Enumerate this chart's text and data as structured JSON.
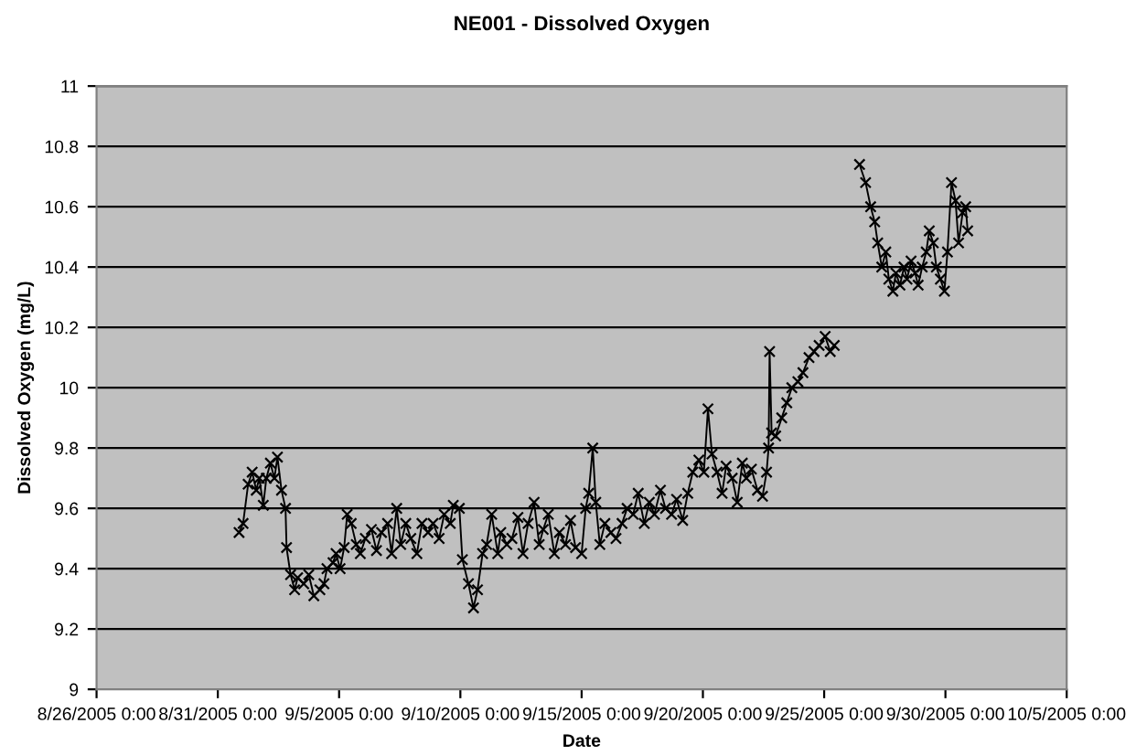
{
  "chart_data": {
    "type": "line",
    "title": "NE001 - Dissolved Oxygen",
    "xlabel": "Date",
    "ylabel": "Dissolved Oxygen (mg/L)",
    "xlim": [
      "2005-08-26",
      "2005-10-05"
    ],
    "xticks": [
      {
        "value": "2005-08-26",
        "label": "8/26/2005 0:00"
      },
      {
        "value": "2005-08-31",
        "label": "8/31/2005 0:00"
      },
      {
        "value": "2005-09-05",
        "label": "9/5/2005 0:00"
      },
      {
        "value": "2005-09-10",
        "label": "9/10/2005 0:00"
      },
      {
        "value": "2005-09-15",
        "label": "9/15/2005 0:00"
      },
      {
        "value": "2005-09-20",
        "label": "9/20/2005 0:00"
      },
      {
        "value": "2005-09-25",
        "label": "9/25/2005 0:00"
      },
      {
        "value": "2005-09-30",
        "label": "9/30/2005 0:00"
      },
      {
        "value": "2005-10-05",
        "label": "10/5/2005 0:00"
      }
    ],
    "ylim": [
      9,
      11
    ],
    "yticks": [
      9,
      9.2,
      9.4,
      9.6,
      9.8,
      10,
      10.2,
      10.4,
      10.6,
      10.8,
      11
    ],
    "grid": "y",
    "legend": false,
    "marker": "cross",
    "line_style": "solid",
    "series": [
      {
        "color": "#000000",
        "x": [
          "2005-08-31T21:00",
          "2005-09-01T01:00",
          "2005-09-01T06:00",
          "2005-09-01T10:00",
          "2005-09-01T14:00",
          "2005-09-01T17:00",
          "2005-09-01T21:00",
          "2005-09-02T00:00",
          "2005-09-02T04:00",
          "2005-09-02T08:00",
          "2005-09-02T11:00",
          "2005-09-02T15:00",
          "2005-09-02T19:00",
          "2005-09-02T20:00",
          "2005-09-03T00:00",
          "2005-09-03T04:00",
          "2005-09-03T07:00",
          "2005-09-03T13:00",
          "2005-09-03T18:00",
          "2005-09-03T23:00",
          "2005-09-04T05:00",
          "2005-09-04T09:00",
          "2005-09-04T12:00",
          "2005-09-04T18:00",
          "2005-09-04T21:00",
          "2005-09-05T01:00",
          "2005-09-05T05:00",
          "2005-09-05T08:00",
          "2005-09-05T12:00",
          "2005-09-05T17:00",
          "2005-09-05T21:00",
          "2005-09-06T02:00",
          "2005-09-06T08:00",
          "2005-09-06T13:00",
          "2005-09-06T18:00",
          "2005-09-07T00:00",
          "2005-09-07T04:00",
          "2005-09-07T09:00",
          "2005-09-07T13:00",
          "2005-09-07T18:00",
          "2005-09-07T23:00",
          "2005-09-08T05:00",
          "2005-09-08T10:00",
          "2005-09-08T16:00",
          "2005-09-08T21:00",
          "2005-09-09T03:00",
          "2005-09-09T08:00",
          "2005-09-09T14:00",
          "2005-09-09T17:00",
          "2005-09-09T23:00",
          "2005-09-10T02:00",
          "2005-09-10T08:00",
          "2005-09-10T13:00",
          "2005-09-10T17:00",
          "2005-09-10T22:00",
          "2005-09-11T02:00",
          "2005-09-11T07:00",
          "2005-09-11T13:00",
          "2005-09-11T16:00",
          "2005-09-11T22:00",
          "2005-09-12T03:00",
          "2005-09-12T09:00",
          "2005-09-12T14:00",
          "2005-09-12T19:00",
          "2005-09-13T01:00",
          "2005-09-13T06:00",
          "2005-09-13T10:00",
          "2005-09-13T15:00",
          "2005-09-13T21:00",
          "2005-09-14T02:00",
          "2005-09-14T08:00",
          "2005-09-14T13:00",
          "2005-09-14T18:00",
          "2005-09-15T00:00",
          "2005-09-15T04:00",
          "2005-09-15T07:00",
          "2005-09-15T11:00",
          "2005-09-15T14:00",
          "2005-09-15T18:00",
          "2005-09-15T23:00",
          "2005-09-16T05:00",
          "2005-09-16T10:00",
          "2005-09-16T16:00",
          "2005-09-16T21:00",
          "2005-09-17T03:00",
          "2005-09-17T08:00",
          "2005-09-17T14:00",
          "2005-09-17T19:00",
          "2005-09-18T00:00",
          "2005-09-18T06:00",
          "2005-09-18T11:00",
          "2005-09-18T17:00",
          "2005-09-18T22:00",
          "2005-09-19T04:00",
          "2005-09-19T09:00",
          "2005-09-19T14:00",
          "2005-09-19T20:00",
          "2005-09-20T01:00",
          "2005-09-20T05:00",
          "2005-09-20T09:00",
          "2005-09-20T14:00",
          "2005-09-20T19:00",
          "2005-09-20T23:00",
          "2005-09-21T05:00",
          "2005-09-21T10:00",
          "2005-09-21T15:00",
          "2005-09-21T19:00",
          "2005-09-22T00:00",
          "2005-09-22T06:00",
          "2005-09-22T11:00",
          "2005-09-22T15:00",
          "2005-09-22T17:00",
          "2005-09-22T18:00",
          "2005-09-22T20:00",
          "2005-09-23T00:00",
          "2005-09-23T06:00",
          "2005-09-23T11:00",
          "2005-09-23T16:00",
          "2005-09-23T22:00",
          "2005-09-24T03:00",
          "2005-09-24T09:00",
          "2005-09-24T14:00",
          "2005-09-24T19:00",
          "2005-09-25T01:00",
          "2005-09-25T06:00",
          "2005-09-25T10:00",
          "2005-09-25T22:00",
          "2005-09-26T11:00",
          "2005-09-26T17:00",
          "2005-09-26T22:00",
          "2005-09-27T02:00",
          "2005-09-27T05:00",
          "2005-09-27T09:00",
          "2005-09-27T13:00",
          "2005-09-27T16:00",
          "2005-09-27T20:00",
          "2005-09-27T23:00",
          "2005-09-28T03:00",
          "2005-09-28T07:00",
          "2005-09-28T10:00",
          "2005-09-28T14:00",
          "2005-09-28T18:00",
          "2005-09-28T21:00",
          "2005-09-29T01:00",
          "2005-09-29T05:00",
          "2005-09-29T08:00",
          "2005-09-29T12:00",
          "2005-09-29T15:00",
          "2005-09-29T19:00",
          "2005-09-29T23:00",
          "2005-09-30T02:00",
          "2005-09-30T06:00",
          "2005-09-30T10:00",
          "2005-09-30T13:00",
          "2005-09-30T17:00",
          "2005-09-30T20:00",
          "2005-09-30T22:00"
        ],
        "values": [
          9.52,
          9.55,
          9.68,
          9.72,
          9.66,
          9.7,
          9.61,
          9.7,
          9.75,
          9.7,
          9.77,
          9.66,
          9.6,
          9.47,
          9.38,
          9.33,
          9.37,
          9.35,
          9.38,
          9.31,
          9.33,
          9.35,
          9.4,
          9.42,
          9.45,
          9.4,
          9.47,
          9.58,
          9.55,
          9.48,
          9.45,
          9.5,
          9.53,
          9.46,
          9.52,
          9.55,
          9.45,
          9.6,
          9.48,
          9.55,
          9.5,
          9.45,
          9.55,
          9.52,
          9.55,
          9.5,
          9.58,
          9.55,
          9.61,
          9.6,
          9.43,
          9.35,
          9.27,
          9.33,
          9.45,
          9.48,
          9.58,
          9.45,
          9.52,
          9.48,
          9.5,
          9.57,
          9.45,
          9.55,
          9.62,
          9.48,
          9.53,
          9.58,
          9.45,
          9.52,
          9.48,
          9.56,
          9.47,
          9.45,
          9.6,
          9.65,
          9.8,
          9.62,
          9.48,
          9.55,
          9.52,
          9.5,
          9.55,
          9.6,
          9.58,
          9.65,
          9.55,
          9.62,
          9.58,
          9.66,
          9.6,
          9.58,
          9.63,
          9.56,
          9.65,
          9.72,
          9.76,
          9.72,
          9.93,
          9.78,
          9.72,
          9.65,
          9.74,
          9.7,
          9.62,
          9.75,
          9.7,
          9.73,
          9.66,
          9.64,
          9.72,
          9.8,
          10.12,
          9.85,
          9.84,
          9.9,
          9.95,
          10,
          10.02,
          10.05,
          10.1,
          10.12,
          10.14,
          10.17,
          10.12,
          10.14,
          null,
          10.74,
          10.68,
          10.6,
          10.55,
          10.48,
          10.4,
          10.45,
          10.36,
          10.32,
          10.38,
          10.34,
          10.4,
          10.36,
          10.42,
          10.38,
          10.34,
          10.4,
          10.45,
          10.52,
          10.48,
          10.4,
          10.36,
          10.32,
          10.45,
          10.68,
          10.62,
          10.48,
          10.58,
          10.6,
          10.52
        ]
      }
    ]
  }
}
